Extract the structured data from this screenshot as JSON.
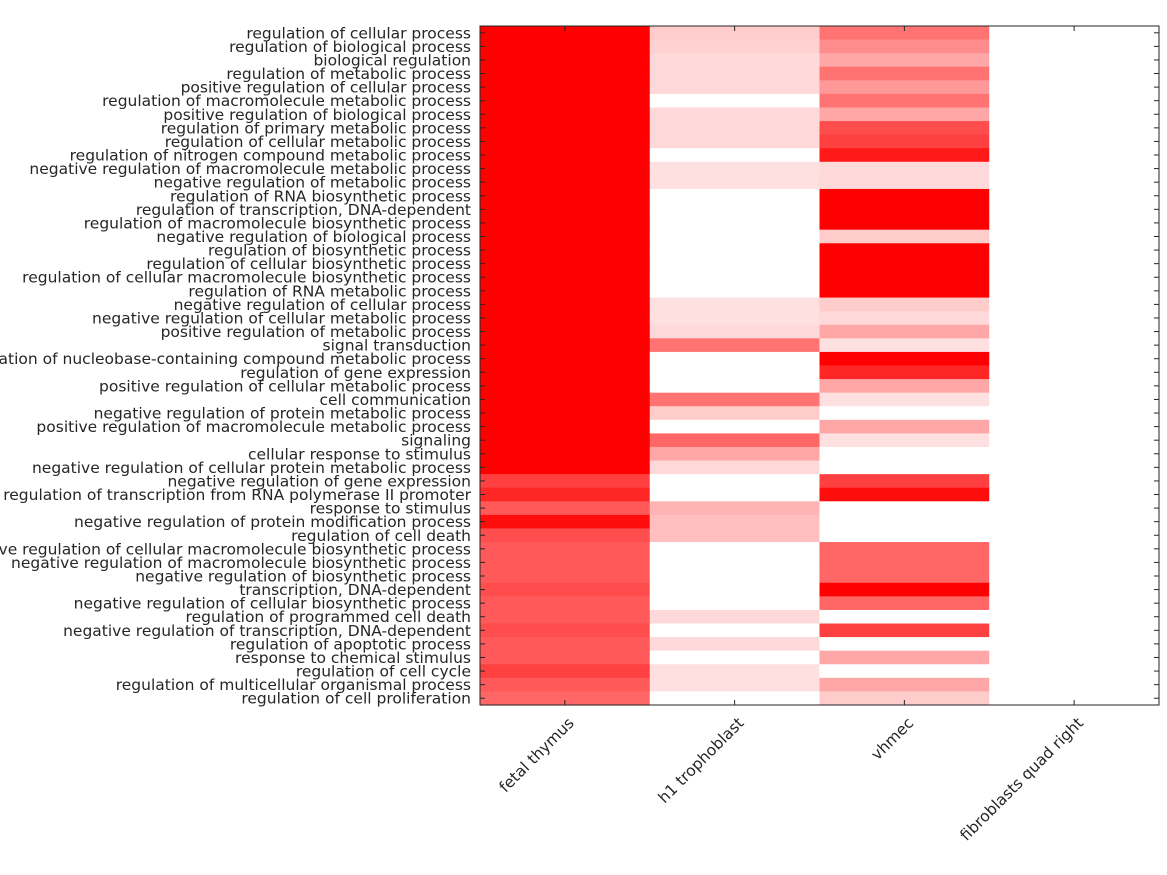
{
  "chart_data": {
    "type": "heatmap",
    "title": "",
    "xlabel": "",
    "ylabel": "",
    "color_low": "#ffffff",
    "color_high": "#ff0000",
    "value_range": [
      0,
      1
    ],
    "grid": false,
    "columns": [
      "fetal thymus",
      "h1 trophoblast",
      "vhmec",
      "fibroblasts quad right"
    ],
    "rows": [
      "regulation of cellular process",
      "regulation of biological process",
      "biological regulation",
      "regulation of metabolic process",
      "positive regulation of cellular process",
      "regulation of macromolecule metabolic process",
      "positive regulation of biological process",
      "regulation of primary metabolic process",
      "regulation of cellular metabolic process",
      "regulation of nitrogen compound metabolic process",
      "negative regulation of macromolecule metabolic process",
      "negative regulation of metabolic process",
      "regulation of RNA biosynthetic process",
      "regulation of transcription, DNA-dependent",
      "regulation of macromolecule biosynthetic process",
      "negative regulation of biological process",
      "regulation of biosynthetic process",
      "regulation of cellular biosynthetic process",
      "regulation of cellular macromolecule biosynthetic process",
      "regulation of RNA metabolic process",
      "negative regulation of cellular process",
      "negative regulation of cellular metabolic process",
      "positive regulation of metabolic process",
      "signal transduction",
      "regulation of nucleobase-containing compound metabolic process",
      "regulation of gene expression",
      "positive regulation of cellular metabolic process",
      "cell communication",
      "negative regulation of protein metabolic process",
      "positive regulation of macromolecule metabolic process",
      "signaling",
      "cellular response to stimulus",
      "negative regulation of cellular protein metabolic process",
      "negative regulation of gene expression",
      "regulation of transcription from RNA polymerase II promoter",
      "response to stimulus",
      "negative regulation of protein modification process",
      "regulation of cell death",
      "negative regulation of cellular macromolecule biosynthetic process",
      "negative regulation of macromolecule biosynthetic process",
      "negative regulation of biosynthetic process",
      "transcription, DNA-dependent",
      "negative regulation of cellular biosynthetic process",
      "regulation of programmed cell death",
      "negative regulation of transcription, DNA-dependent",
      "regulation of apoptotic process",
      "response to chemical stimulus",
      "regulation of cell cycle",
      "regulation of multicellular organismal process",
      "regulation of cell proliferation"
    ],
    "values": [
      [
        1.0,
        0.2,
        0.55,
        0
      ],
      [
        1.0,
        0.18,
        0.45,
        0
      ],
      [
        1.0,
        0.15,
        0.35,
        0
      ],
      [
        1.0,
        0.15,
        0.55,
        0
      ],
      [
        1.0,
        0.15,
        0.4,
        0
      ],
      [
        1.0,
        0.0,
        0.55,
        0
      ],
      [
        1.0,
        0.15,
        0.35,
        0
      ],
      [
        1.0,
        0.15,
        0.7,
        0
      ],
      [
        1.0,
        0.15,
        0.75,
        0
      ],
      [
        1.0,
        0.0,
        0.9,
        0
      ],
      [
        1.0,
        0.12,
        0.15,
        0
      ],
      [
        1.0,
        0.12,
        0.15,
        0
      ],
      [
        1.0,
        0.0,
        1.0,
        0
      ],
      [
        1.0,
        0.0,
        1.0,
        0
      ],
      [
        1.0,
        0.0,
        1.0,
        0
      ],
      [
        1.0,
        0.0,
        0.2,
        0
      ],
      [
        1.0,
        0.0,
        1.0,
        0
      ],
      [
        1.0,
        0.0,
        1.0,
        0
      ],
      [
        1.0,
        0.0,
        1.0,
        0
      ],
      [
        1.0,
        0.0,
        1.0,
        0
      ],
      [
        1.0,
        0.12,
        0.2,
        0
      ],
      [
        1.0,
        0.12,
        0.15,
        0
      ],
      [
        1.0,
        0.15,
        0.35,
        0
      ],
      [
        1.0,
        0.55,
        0.12,
        0
      ],
      [
        1.0,
        0.0,
        1.0,
        0
      ],
      [
        1.0,
        0.0,
        0.85,
        0
      ],
      [
        1.0,
        0.0,
        0.35,
        0
      ],
      [
        1.0,
        0.55,
        0.12,
        0
      ],
      [
        1.0,
        0.2,
        0.0,
        0
      ],
      [
        1.0,
        0.0,
        0.35,
        0
      ],
      [
        1.0,
        0.6,
        0.12,
        0
      ],
      [
        1.0,
        0.35,
        0.0,
        0
      ],
      [
        1.0,
        0.15,
        0.0,
        0
      ],
      [
        0.75,
        0.0,
        0.75,
        0
      ],
      [
        0.85,
        0.0,
        0.95,
        0
      ],
      [
        0.65,
        0.3,
        0.0,
        0
      ],
      [
        0.95,
        0.25,
        0.0,
        0
      ],
      [
        0.7,
        0.25,
        0.0,
        0
      ],
      [
        0.65,
        0.0,
        0.6,
        0
      ],
      [
        0.65,
        0.0,
        0.6,
        0
      ],
      [
        0.65,
        0.0,
        0.6,
        0
      ],
      [
        0.7,
        0.0,
        1.0,
        0
      ],
      [
        0.65,
        0.0,
        0.6,
        0
      ],
      [
        0.65,
        0.15,
        0.0,
        0
      ],
      [
        0.7,
        0.0,
        0.75,
        0
      ],
      [
        0.65,
        0.15,
        0.0,
        0
      ],
      [
        0.65,
        0.0,
        0.35,
        0
      ],
      [
        0.75,
        0.12,
        0.0,
        0
      ],
      [
        0.65,
        0.12,
        0.35,
        0
      ],
      [
        0.6,
        0.0,
        0.2,
        0
      ]
    ]
  }
}
